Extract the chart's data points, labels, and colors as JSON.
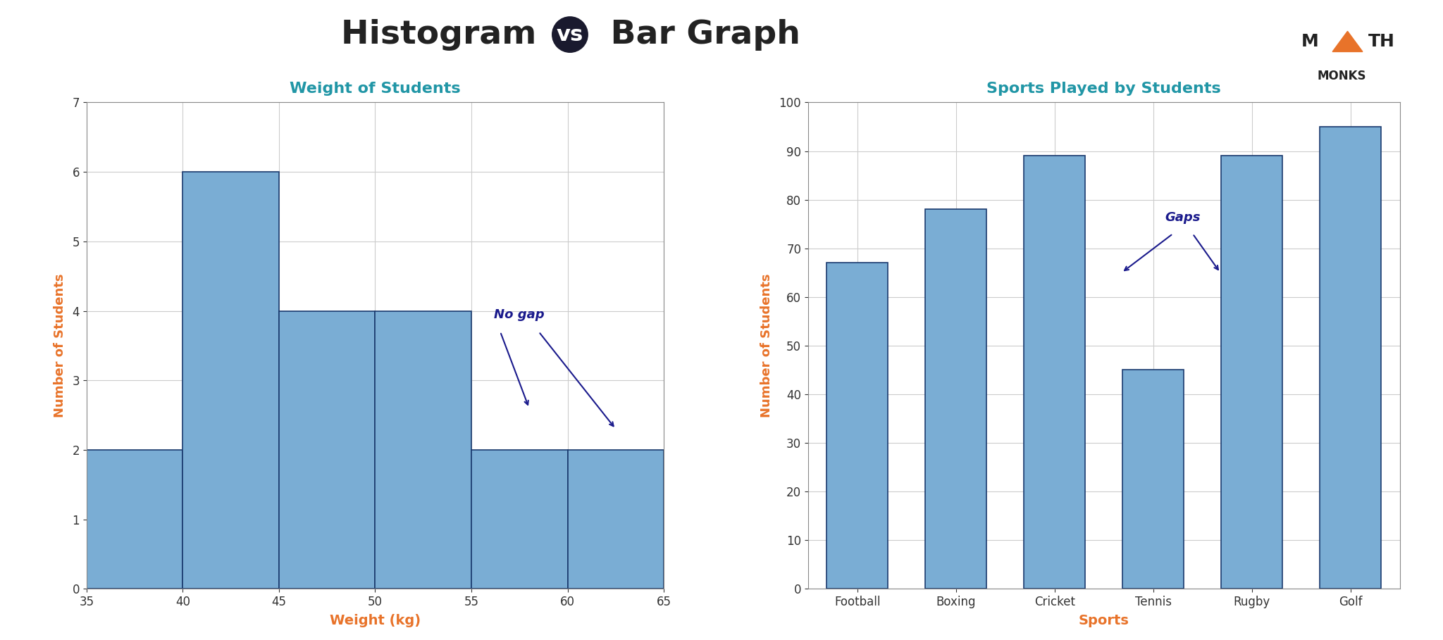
{
  "title_color": "#222222",
  "title_fontsize": 34,
  "background_color": "#ffffff",
  "hist_title": "Weight of Students",
  "hist_title_color": "#2196A6",
  "hist_title_fontsize": 16,
  "hist_xlabel": "Weight (kg)",
  "hist_xlabel_color": "#e8732a",
  "hist_xlabel_fontsize": 14,
  "hist_ylabel": "Number of Students",
  "hist_ylabel_color": "#e8732a",
  "hist_ylabel_fontsize": 13,
  "hist_bins": [
    35,
    40,
    45,
    50,
    55,
    60,
    65
  ],
  "hist_values": [
    2,
    6,
    4,
    4,
    2,
    2
  ],
  "hist_bar_color": "#7aadd4",
  "hist_edge_color": "#1a3a6e",
  "hist_ylim": [
    0,
    7
  ],
  "hist_yticks": [
    0,
    1,
    2,
    3,
    4,
    5,
    6,
    7
  ],
  "hist_xticks": [
    35,
    40,
    45,
    50,
    55,
    60,
    65
  ],
  "hist_annotation_text": "No gap",
  "hist_annotation_color": "#1a1a8c",
  "hist_annotation_fontsize": 13,
  "bar_title": "Sports Played by Students",
  "bar_title_color": "#2196A6",
  "bar_title_fontsize": 16,
  "bar_xlabel": "Sports",
  "bar_xlabel_color": "#e8732a",
  "bar_xlabel_fontsize": 14,
  "bar_ylabel": "Number of Students",
  "bar_ylabel_color": "#e8732a",
  "bar_ylabel_fontsize": 13,
  "bar_categories": [
    "Football",
    "Boxing",
    "Cricket",
    "Tennis",
    "Rugby",
    "Golf"
  ],
  "bar_values": [
    67,
    78,
    89,
    45,
    89,
    95
  ],
  "bar_color": "#7aadd4",
  "bar_edge_color": "#1a3a6e",
  "bar_ylim": [
    0,
    100
  ],
  "bar_yticks": [
    0,
    10,
    20,
    30,
    40,
    50,
    60,
    70,
    80,
    90,
    100
  ],
  "bar_annotation_text": "Gaps",
  "bar_annotation_color": "#1a1a8c",
  "bar_annotation_fontsize": 13,
  "grid_color": "#cccccc",
  "grid_linewidth": 0.8,
  "mathmonks_triangle_color": "#e8732a",
  "mathmonks_text_color": "#222222"
}
